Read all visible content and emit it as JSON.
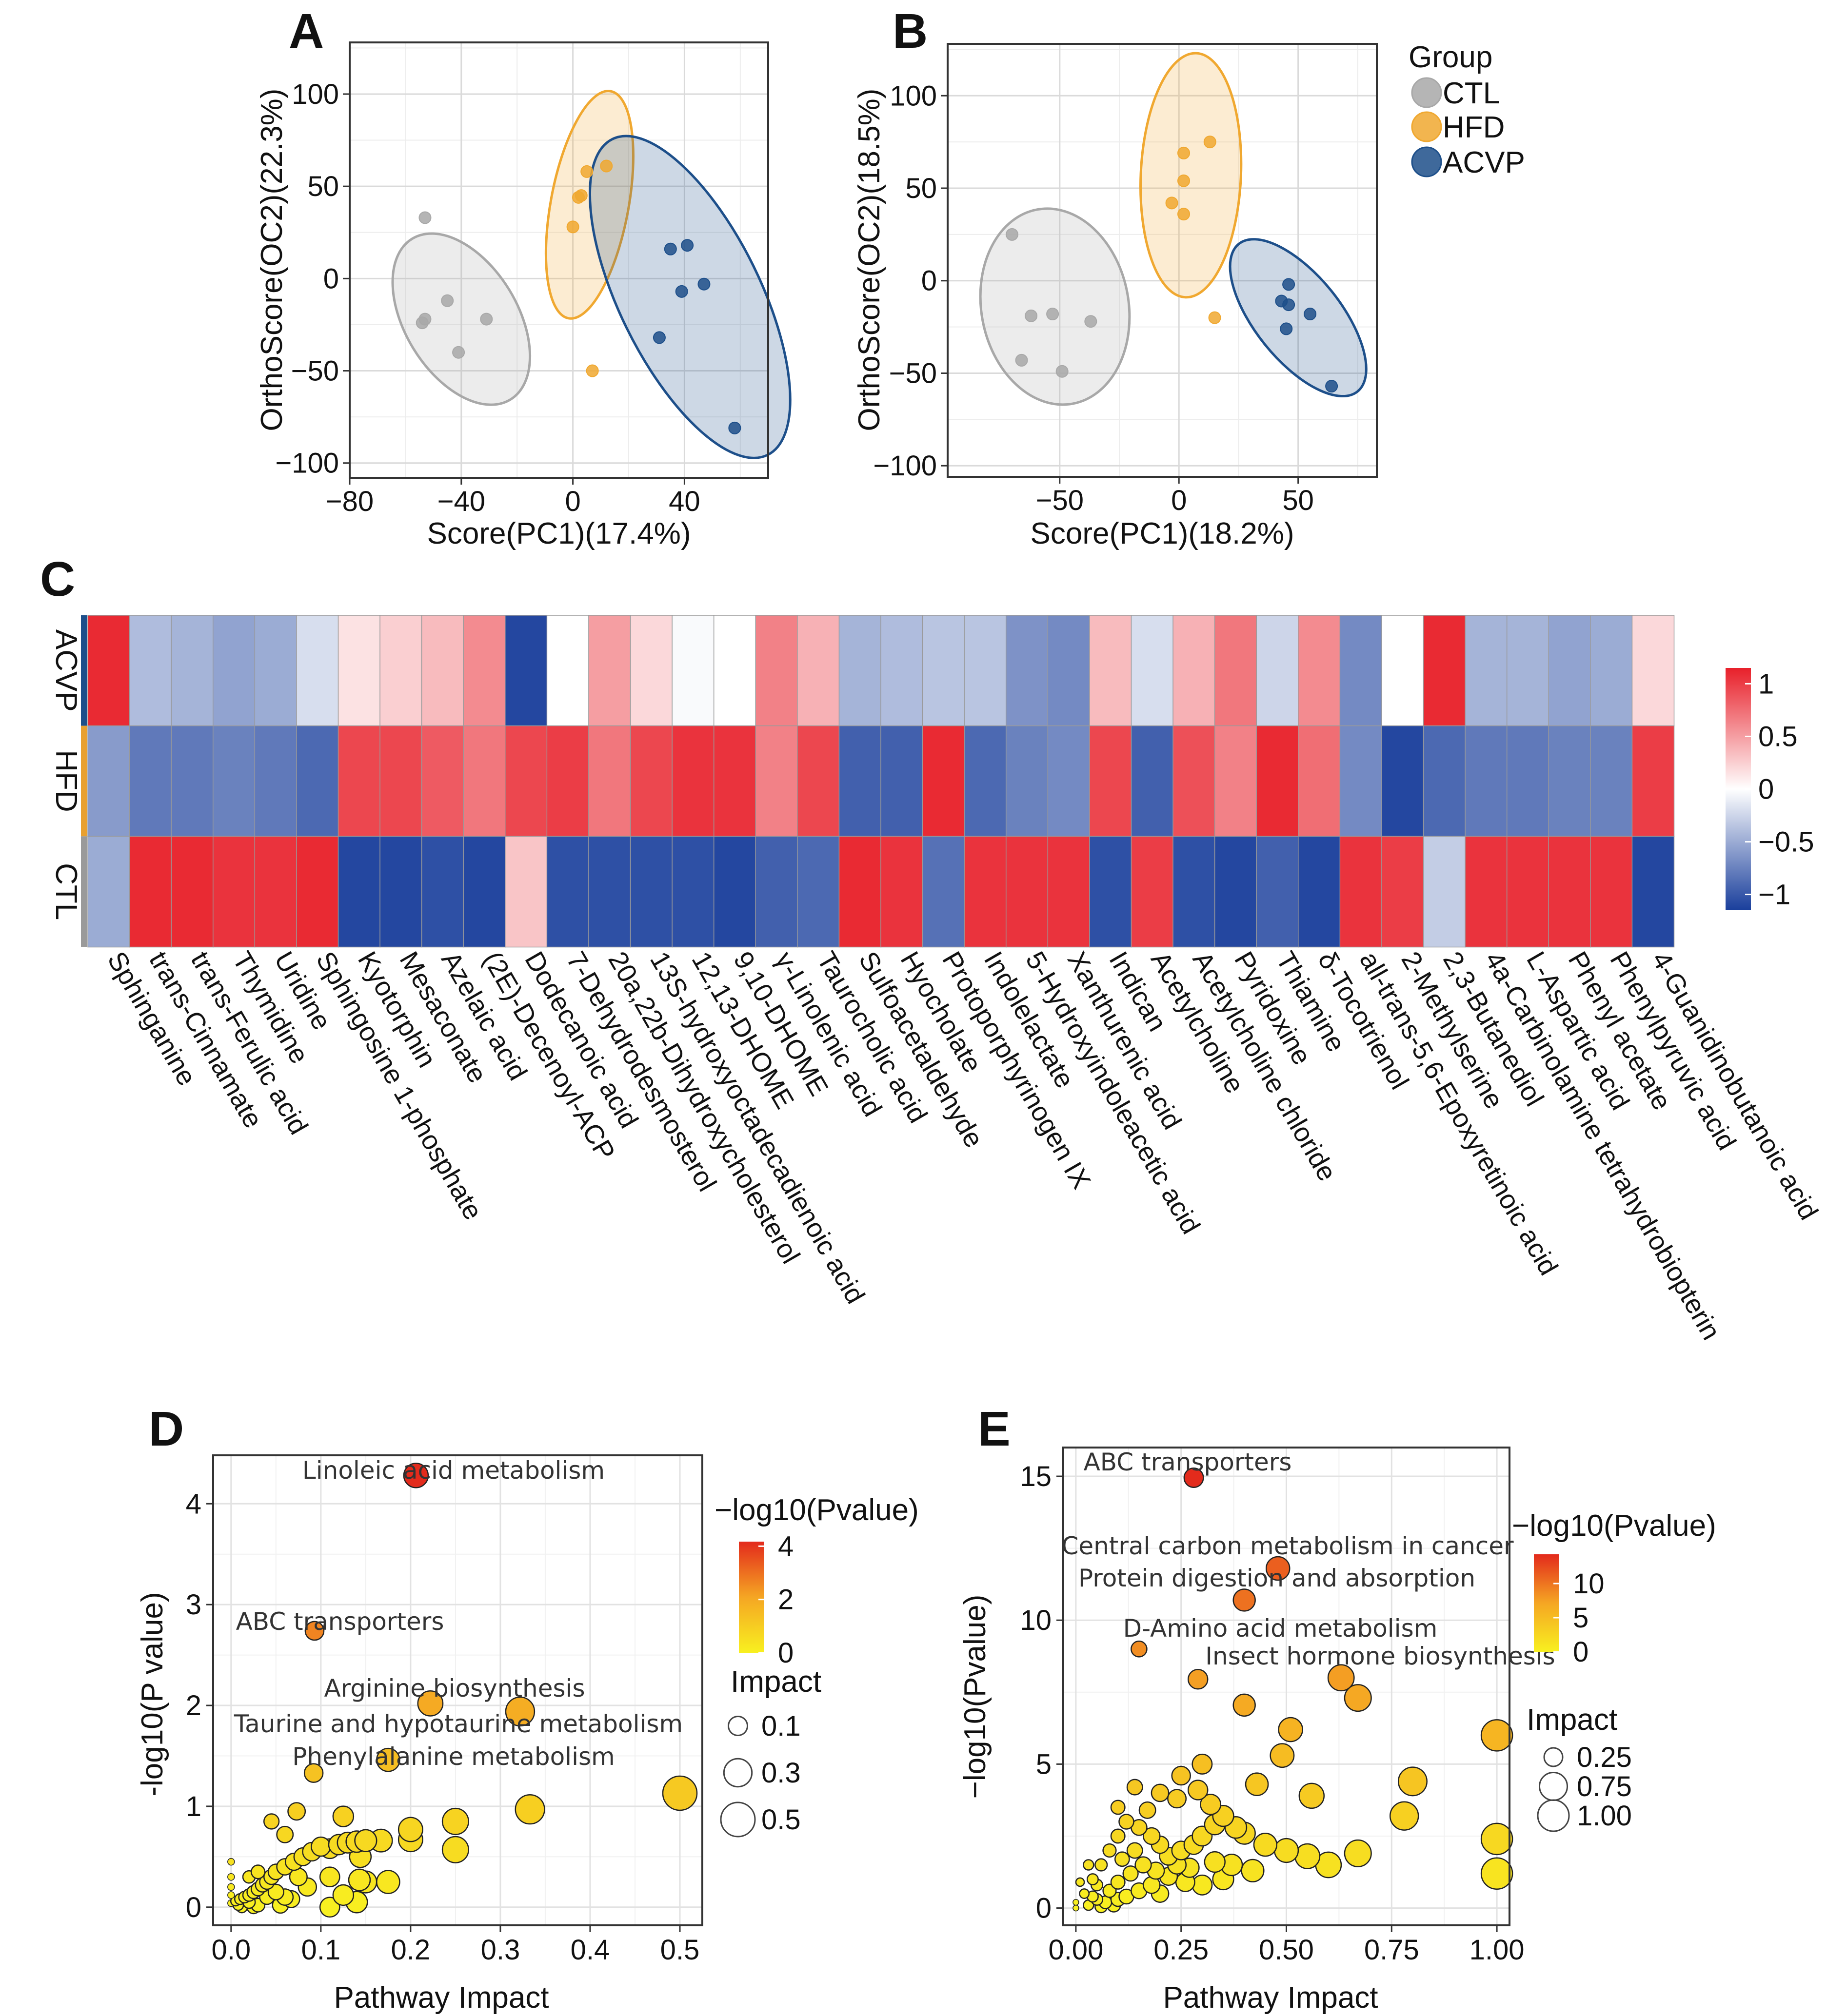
{
  "chart_data": [
    {
      "panel": "A",
      "type": "scatter",
      "title": "",
      "xlabel": "Score(PC1)(17.4%)",
      "ylabel": "OrthoScore(OC2)(22.3%)",
      "xlim": [
        -80,
        70
      ],
      "ylim": [
        -108,
        128
      ],
      "xticks": [
        -80,
        -40,
        0,
        40
      ],
      "yticks": [
        -100,
        -50,
        0,
        50,
        100
      ],
      "groups": [
        {
          "name": "CTL",
          "color": "#a8a8a8",
          "ellipse": {
            "cx": -40,
            "cy": -22,
            "rx": 47,
            "ry": 21,
            "angle_deg": -68
          },
          "points": [
            [
              -53,
              33
            ],
            [
              -54,
              -24
            ],
            [
              -45,
              -12
            ],
            [
              -53,
              -22
            ],
            [
              -41,
              -40
            ],
            [
              -31,
              -22
            ]
          ]
        },
        {
          "name": "HFD",
          "color": "#f0a830",
          "ellipse": {
            "cx": 6,
            "cy": 40,
            "rx": 62,
            "ry": 14,
            "angle_deg": 83
          },
          "points": [
            [
              5,
              58
            ],
            [
              12,
              61
            ],
            [
              2,
              44
            ],
            [
              3,
              45
            ],
            [
              0,
              28
            ],
            [
              7,
              -50
            ]
          ]
        },
        {
          "name": "ACVP",
          "color": "#1d4f8a",
          "ellipse": {
            "cx": 42,
            "cy": -10,
            "rx": 90,
            "ry": 26,
            "angle_deg": -72
          },
          "points": [
            [
              35,
              16
            ],
            [
              41,
              18
            ],
            [
              47,
              -3
            ],
            [
              39,
              -7
            ],
            [
              31,
              -32
            ],
            [
              58,
              -81
            ]
          ]
        }
      ]
    },
    {
      "panel": "B",
      "type": "scatter",
      "title": "",
      "xlabel": "Score(PC1)(18.2%)",
      "ylabel": "OrthoScore(OC2)(18.5%)",
      "xlim": [
        -97,
        83
      ],
      "ylim": [
        -106,
        128
      ],
      "xticks": [
        -50,
        0,
        50
      ],
      "yticks": [
        -100,
        -50,
        0,
        50,
        100
      ],
      "legend": {
        "title": "Group",
        "entries": [
          "CTL",
          "HFD",
          "ACVP"
        ],
        "position": "right"
      },
      "groups": [
        {
          "name": "CTL",
          "color": "#a8a8a8",
          "ellipse": {
            "cx": -52,
            "cy": -14,
            "rx": 53,
            "ry": 31,
            "angle_deg": -82
          },
          "points": [
            [
              -70,
              25
            ],
            [
              -62,
              -19
            ],
            [
              -53,
              -18
            ],
            [
              -37,
              -22
            ],
            [
              -66,
              -43
            ],
            [
              -49,
              -49
            ]
          ]
        },
        {
          "name": "HFD",
          "color": "#f0a830",
          "ellipse": {
            "cx": 5,
            "cy": 57,
            "rx": 66,
            "ry": 21,
            "angle_deg": 88
          },
          "points": [
            [
              2,
              69
            ],
            [
              13,
              75
            ],
            [
              2,
              54
            ],
            [
              -3,
              42
            ],
            [
              2,
              36
            ],
            [
              15,
              -20
            ]
          ]
        },
        {
          "name": "ACVP",
          "color": "#1d4f8a",
          "ellipse": {
            "cx": 50,
            "cy": -20,
            "rx": 47,
            "ry": 19,
            "angle_deg": -58
          },
          "points": [
            [
              46,
              -2
            ],
            [
              43,
              -11
            ],
            [
              46,
              -13
            ],
            [
              55,
              -18
            ],
            [
              45,
              -26
            ],
            [
              64,
              -57
            ]
          ]
        }
      ]
    },
    {
      "panel": "C",
      "type": "heatmap",
      "rows": [
        "ACVP",
        "HFD",
        "CTL"
      ],
      "row_colors": [
        "#1d4f8a",
        "#e8a030",
        "#9a9a9a"
      ],
      "colorbar": {
        "ticks": [
          1,
          0.5,
          0,
          -0.5,
          -1
        ],
        "range": [
          -1.15,
          1.15
        ]
      },
      "columns": [
        "Sphinganine",
        "trans-Cinnamate",
        "trans-Ferulic acid",
        "Thymidine",
        "Uridine",
        "Sphingosine 1-phosphate",
        "Kyotorphin",
        "Mesaconate",
        "Azelaic acid",
        "(2E)-Decenoyl-ACP",
        "Dodecanoic acid",
        "7-Dehydrodesmosterol",
        "20a,22b-Dihydroxycholesterol",
        "13S-hydroxyoctadecadienoic acid",
        "12,13-DHOME",
        "9,10-DHOME",
        "γ-Linolenic acid",
        "Taurocholic acid",
        "Sulfoacetaldehyde",
        "Hyocholate",
        "Protoporphyrinogen IX",
        "Indolelactate",
        "5-Hydroxyindoleacetic acid",
        "Xanthurenic acid",
        "Indican",
        "Acetylcholine",
        "Acetylcholine chloride",
        "Pyridoxine",
        "Thiamine",
        "δ-Tocotrienol",
        "all-trans-5,6-Epoxyretinoic acid",
        "2-Methylserine",
        "2,3-Butanediol",
        "4a-Carbinolamine tetrahydrobiopterin",
        "L-Aspartic acid",
        "Phenyl acetate",
        "Phenylpyruvic acid",
        "4-Guanidinobutanoic acid"
      ],
      "values": [
        [
          1.1,
          -0.4,
          -0.45,
          -0.55,
          -0.5,
          -0.2,
          0.15,
          0.25,
          0.35,
          0.6,
          -1.1,
          0.0,
          0.5,
          0.2,
          -0.03,
          0.0,
          0.65,
          0.4,
          -0.45,
          -0.4,
          -0.35,
          -0.35,
          -0.65,
          -0.7,
          0.35,
          -0.2,
          0.4,
          0.7,
          -0.25,
          0.6,
          -0.7,
          0.0,
          1.1,
          -0.45,
          -0.45,
          -0.55,
          -0.5,
          0.2
        ],
        [
          -0.6,
          -0.8,
          -0.8,
          -0.75,
          -0.8,
          -0.9,
          0.95,
          0.95,
          0.85,
          0.7,
          0.95,
          1.0,
          0.7,
          0.95,
          1.05,
          1.05,
          0.65,
          0.95,
          -0.95,
          -0.95,
          1.1,
          -0.9,
          -0.75,
          -0.7,
          0.95,
          -0.95,
          0.9,
          0.65,
          1.1,
          0.75,
          -0.7,
          -1.1,
          -0.9,
          -0.8,
          -0.8,
          -0.75,
          -0.75,
          1.0
        ],
        [
          -0.5,
          1.1,
          1.1,
          1.05,
          1.05,
          1.1,
          -1.1,
          -1.1,
          -1.05,
          -1.1,
          0.3,
          -1.05,
          -1.05,
          -1.05,
          -1.05,
          -1.1,
          -0.95,
          -0.9,
          1.1,
          1.05,
          -0.85,
          1.05,
          1.05,
          1.05,
          -1.05,
          1.0,
          -1.05,
          -1.1,
          -0.95,
          -1.1,
          1.05,
          1.0,
          -0.3,
          1.05,
          1.05,
          1.05,
          1.05,
          -1.1
        ]
      ]
    },
    {
      "panel": "D",
      "type": "scatter",
      "xlabel": "Pathway Impact",
      "ylabel": "-log10(P value)",
      "xlim": [
        -0.02,
        0.525
      ],
      "ylim": [
        -0.18,
        4.48
      ],
      "xticks": [
        0.0,
        0.1,
        0.2,
        0.3,
        0.4,
        0.5
      ],
      "yticks": [
        0,
        1,
        2,
        3,
        4
      ],
      "color_legend": {
        "title": "−log10(Pvalue)",
        "ticks": [
          4,
          2,
          0
        ],
        "range": [
          0,
          4.3
        ]
      },
      "size_legend": {
        "title": "Impact",
        "entries": [
          0.1,
          0.3,
          0.5
        ]
      },
      "annotations": [
        "Linoleic acid metabolism",
        "ABC transporters",
        "Arginine biosynthesis",
        "Taurine and hypotaurine metabolism",
        "Phenylalanine metabolism"
      ],
      "points": [
        [
          0.206,
          4.28
        ],
        [
          0.093,
          2.74
        ],
        [
          0.222,
          2.02
        ],
        [
          0.322,
          1.94
        ],
        [
          0.175,
          1.46
        ],
        [
          0.092,
          1.33
        ],
        [
          0.5,
          1.13
        ],
        [
          0.333,
          0.97
        ],
        [
          0.25,
          0.85
        ],
        [
          0.2,
          0.77
        ],
        [
          0.25,
          0.57
        ],
        [
          0.2,
          0.67
        ],
        [
          0.167,
          0.66
        ],
        [
          0.125,
          0.9
        ],
        [
          0.144,
          0.5
        ],
        [
          0.143,
          0.27
        ],
        [
          0.14,
          0.05
        ],
        [
          0.15,
          0.25
        ],
        [
          0.175,
          0.25
        ],
        [
          0.11,
          0.3
        ],
        [
          0.11,
          0.0
        ],
        [
          0.125,
          0.12
        ],
        [
          0.085,
          0.2
        ],
        [
          0.067,
          0.08
        ],
        [
          0.073,
          0.95
        ],
        [
          0.075,
          0.3
        ],
        [
          0.06,
          0.1
        ],
        [
          0.1,
          0.6
        ],
        [
          0.09,
          0.55
        ],
        [
          0.08,
          0.5
        ],
        [
          0.07,
          0.45
        ],
        [
          0.06,
          0.4
        ],
        [
          0.05,
          0.35
        ],
        [
          0.045,
          0.3
        ],
        [
          0.04,
          0.25
        ],
        [
          0.035,
          0.22
        ],
        [
          0.03,
          0.18
        ],
        [
          0.025,
          0.15
        ],
        [
          0.02,
          0.12
        ],
        [
          0.015,
          0.1
        ],
        [
          0.01,
          0.08
        ],
        [
          0.005,
          0.06
        ],
        [
          0.0,
          0.04
        ],
        [
          0.0,
          0.12
        ],
        [
          0.0,
          0.2
        ],
        [
          0.0,
          0.3
        ],
        [
          0.0,
          0.45
        ],
        [
          0.008,
          0.02
        ],
        [
          0.012,
          0.0
        ],
        [
          0.02,
          0.05
        ],
        [
          0.03,
          0.02
        ],
        [
          0.04,
          0.1
        ],
        [
          0.05,
          0.15
        ],
        [
          0.055,
          0.02
        ],
        [
          0.045,
          0.85
        ],
        [
          0.06,
          0.72
        ],
        [
          0.11,
          0.58
        ],
        [
          0.12,
          0.62
        ],
        [
          0.13,
          0.64
        ],
        [
          0.14,
          0.65
        ],
        [
          0.15,
          0.66
        ],
        [
          0.02,
          0.3
        ],
        [
          0.03,
          0.35
        ],
        [
          0.025,
          0.0
        ]
      ]
    },
    {
      "panel": "E",
      "type": "scatter",
      "xlabel": "Pathway Impact",
      "ylabel": "−log10(Pvalue)",
      "xlim": [
        -0.03,
        1.03
      ],
      "ylim": [
        -0.6,
        16.0
      ],
      "xticks": [
        0.0,
        0.25,
        0.5,
        0.75,
        1.0
      ],
      "xticklabels": [
        "0.00",
        "0.25",
        "0.50",
        "0.75",
        "1.00"
      ],
      "yticks": [
        0,
        5,
        10,
        15
      ],
      "color_legend": {
        "title": "−log10(Pvalue)",
        "ticks": [
          10,
          5,
          0
        ],
        "range": [
          0,
          15
        ]
      },
      "size_legend": {
        "title": "Impact",
        "entries": [
          0.25,
          0.75,
          1.0
        ],
        "labels": [
          "0.25",
          "0.75",
          "1.00"
        ]
      },
      "annotations": [
        "ABC transporters",
        "Central carbon metabolism in cancer",
        "Protein digestion and absorption",
        "D-Amino acid metabolism",
        "Insect hormone biosynthesis"
      ],
      "points": [
        [
          0.28,
          14.95
        ],
        [
          0.48,
          11.8
        ],
        [
          0.4,
          10.7
        ],
        [
          0.15,
          9.0
        ],
        [
          0.29,
          7.95
        ],
        [
          0.63,
          8.0
        ],
        [
          0.67,
          7.3
        ],
        [
          0.4,
          7.05
        ],
        [
          1.0,
          6.0
        ],
        [
          0.51,
          6.2
        ],
        [
          0.49,
          5.3
        ],
        [
          0.3,
          5.0
        ],
        [
          0.43,
          4.3
        ],
        [
          0.8,
          4.4
        ],
        [
          0.56,
          3.9
        ],
        [
          0.78,
          3.2
        ],
        [
          1.0,
          2.4
        ],
        [
          0.67,
          1.9
        ],
        [
          1.0,
          1.2
        ],
        [
          0.25,
          4.6
        ],
        [
          0.29,
          4.1
        ],
        [
          0.32,
          3.6
        ],
        [
          0.35,
          3.2
        ],
        [
          0.38,
          2.8
        ],
        [
          0.4,
          2.6
        ],
        [
          0.45,
          2.2
        ],
        [
          0.5,
          2.0
        ],
        [
          0.55,
          1.8
        ],
        [
          0.6,
          1.5
        ],
        [
          0.33,
          2.9
        ],
        [
          0.3,
          2.5
        ],
        [
          0.28,
          2.2
        ],
        [
          0.25,
          2.0
        ],
        [
          0.22,
          1.8
        ],
        [
          0.2,
          2.2
        ],
        [
          0.18,
          2.5
        ],
        [
          0.15,
          2.8
        ],
        [
          0.12,
          3.0
        ],
        [
          0.1,
          2.5
        ],
        [
          0.08,
          2.0
        ],
        [
          0.06,
          1.5
        ],
        [
          0.04,
          1.0
        ],
        [
          0.02,
          0.5
        ],
        [
          0.0,
          0.2
        ],
        [
          0.0,
          0.0
        ],
        [
          0.03,
          0.1
        ],
        [
          0.05,
          0.3
        ],
        [
          0.08,
          0.6
        ],
        [
          0.1,
          0.9
        ],
        [
          0.13,
          1.2
        ],
        [
          0.16,
          1.5
        ],
        [
          0.19,
          1.3
        ],
        [
          0.22,
          1.1
        ],
        [
          0.26,
          0.9
        ],
        [
          0.3,
          0.8
        ],
        [
          0.35,
          1.0
        ],
        [
          0.12,
          0.4
        ],
        [
          0.15,
          0.6
        ],
        [
          0.18,
          0.8
        ],
        [
          0.2,
          0.5
        ],
        [
          0.07,
          0.2
        ],
        [
          0.1,
          0.3
        ],
        [
          0.05,
          0.8
        ],
        [
          0.14,
          4.2
        ],
        [
          0.2,
          4.0
        ],
        [
          0.24,
          3.8
        ],
        [
          0.1,
          3.5
        ],
        [
          0.17,
          3.4
        ],
        [
          0.03,
          1.5
        ],
        [
          0.01,
          0.9
        ],
        [
          0.04,
          0.4
        ],
        [
          0.06,
          0.05
        ],
        [
          0.09,
          0.1
        ],
        [
          0.11,
          1.7
        ],
        [
          0.14,
          2.0
        ],
        [
          0.24,
          1.5
        ],
        [
          0.27,
          1.4
        ],
        [
          0.33,
          1.6
        ],
        [
          0.37,
          1.5
        ],
        [
          0.42,
          1.3
        ]
      ]
    }
  ]
}
